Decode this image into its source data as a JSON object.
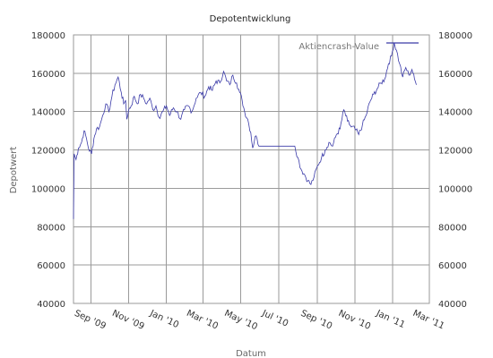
{
  "chart_data": {
    "type": "line",
    "title": "Depotentwicklung",
    "xlabel": "Datum",
    "ylabel": "Depotwert",
    "x_tick_labels": [
      "Sep '09",
      "Nov '09",
      "Jan '10",
      "Mar '10",
      "May '10",
      "Jul '10",
      "Sep '10",
      "Nov '10",
      "Jan '11",
      "Mar '11"
    ],
    "y_ticks": [
      40000,
      60000,
      80000,
      100000,
      120000,
      140000,
      160000,
      180000
    ],
    "ylim": [
      40000,
      180000
    ],
    "xlim": [
      "2009-08-04",
      "2011-03-01"
    ],
    "grid": true,
    "legend_position": "top-right",
    "series": [
      {
        "name": "Aktiencrash-Value",
        "color": "#3a3aa8",
        "points": [
          [
            "2009-08-04",
            84000
          ],
          [
            "2009-08-05",
            118000
          ],
          [
            "2009-08-08",
            115000
          ],
          [
            "2009-08-12",
            121000
          ],
          [
            "2009-08-17",
            124000
          ],
          [
            "2009-08-21",
            130000
          ],
          [
            "2009-08-25",
            126000
          ],
          [
            "2009-08-28",
            121000
          ],
          [
            "2009-09-02",
            118000
          ],
          [
            "2009-09-06",
            126000
          ],
          [
            "2009-09-10",
            131000
          ],
          [
            "2009-09-15",
            132000
          ],
          [
            "2009-09-20",
            138000
          ],
          [
            "2009-09-25",
            144000
          ],
          [
            "2009-09-30",
            140000
          ],
          [
            "2009-10-05",
            148000
          ],
          [
            "2009-10-10",
            154000
          ],
          [
            "2009-10-15",
            158000
          ],
          [
            "2009-10-20",
            150000
          ],
          [
            "2009-10-24",
            144000
          ],
          [
            "2009-10-27",
            146000
          ],
          [
            "2009-10-29",
            136000
          ],
          [
            "2009-11-01",
            141000
          ],
          [
            "2009-11-05",
            143000
          ],
          [
            "2009-11-10",
            148000
          ],
          [
            "2009-11-15",
            144000
          ],
          [
            "2009-11-20",
            149000
          ],
          [
            "2009-11-25",
            147000
          ],
          [
            "2009-11-30",
            144000
          ],
          [
            "2009-12-05",
            147000
          ],
          [
            "2009-12-10",
            141000
          ],
          [
            "2009-12-15",
            143000
          ],
          [
            "2009-12-20",
            137000
          ],
          [
            "2009-12-26",
            140000
          ],
          [
            "2010-01-01",
            143000
          ],
          [
            "2010-01-06",
            138000
          ],
          [
            "2010-01-12",
            142000
          ],
          [
            "2010-01-18",
            140000
          ],
          [
            "2010-01-24",
            136000
          ],
          [
            "2010-01-30",
            141000
          ],
          [
            "2010-02-05",
            143000
          ],
          [
            "2010-02-11",
            140000
          ],
          [
            "2010-02-18",
            147000
          ],
          [
            "2010-02-25",
            150000
          ],
          [
            "2010-03-04",
            148000
          ],
          [
            "2010-03-10",
            153000
          ],
          [
            "2010-03-16",
            151000
          ],
          [
            "2010-03-22",
            156000
          ],
          [
            "2010-03-28",
            155000
          ],
          [
            "2010-04-03",
            161000
          ],
          [
            "2010-04-08",
            156000
          ],
          [
            "2010-04-13",
            154000
          ],
          [
            "2010-04-18",
            159000
          ],
          [
            "2010-04-24",
            155000
          ],
          [
            "2010-04-29",
            150000
          ],
          [
            "2010-05-03",
            146000
          ],
          [
            "2010-05-07",
            140000
          ],
          [
            "2010-05-12",
            136000
          ],
          [
            "2010-05-17",
            129000
          ],
          [
            "2010-05-20",
            121000
          ],
          [
            "2010-05-24",
            127000
          ],
          [
            "2010-05-27",
            126000
          ],
          [
            "2010-05-30",
            122000
          ],
          [
            "2010-07-27",
            122000
          ],
          [
            "2010-08-01",
            116000
          ],
          [
            "2010-08-06",
            110000
          ],
          [
            "2010-08-12",
            107000
          ],
          [
            "2010-08-17",
            104000
          ],
          [
            "2010-08-22",
            102000
          ],
          [
            "2010-08-27",
            106000
          ],
          [
            "2010-09-02",
            112000
          ],
          [
            "2010-09-08",
            116000
          ],
          [
            "2010-09-14",
            120000
          ],
          [
            "2010-09-20",
            124000
          ],
          [
            "2010-09-26",
            122000
          ],
          [
            "2010-10-02",
            128000
          ],
          [
            "2010-10-08",
            131000
          ],
          [
            "2010-10-14",
            141000
          ],
          [
            "2010-10-20",
            135000
          ],
          [
            "2010-10-26",
            132000
          ],
          [
            "2010-11-01",
            131000
          ],
          [
            "2010-11-07",
            128000
          ],
          [
            "2010-11-13",
            133000
          ],
          [
            "2010-11-19",
            138000
          ],
          [
            "2010-11-25",
            145000
          ],
          [
            "2010-12-01",
            149000
          ],
          [
            "2010-12-07",
            152000
          ],
          [
            "2010-12-13",
            155000
          ],
          [
            "2010-12-19",
            157000
          ],
          [
            "2010-12-25",
            165000
          ],
          [
            "2010-12-30",
            169000
          ],
          [
            "2011-01-03",
            176000
          ],
          [
            "2011-01-07",
            172000
          ],
          [
            "2011-01-12",
            165000
          ],
          [
            "2011-01-17",
            158000
          ],
          [
            "2011-01-22",
            163000
          ],
          [
            "2011-01-27",
            159000
          ],
          [
            "2011-02-01",
            162000
          ],
          [
            "2011-02-05",
            157000
          ],
          [
            "2011-02-08",
            154000
          ]
        ]
      }
    ]
  }
}
